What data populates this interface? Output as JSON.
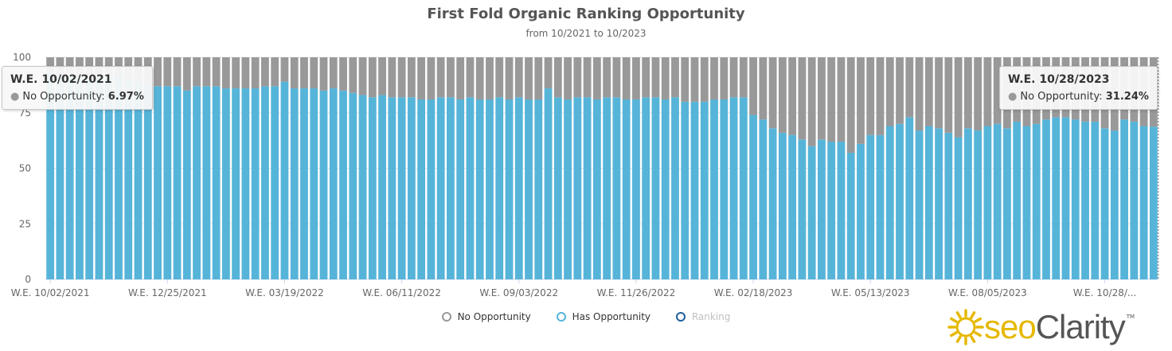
{
  "colors": {
    "no_opportunity": "#999999",
    "has_opportunity": "#56b4d9",
    "ranking": "#1f5f9f",
    "logo_accent": "#e6b800"
  },
  "legend": {
    "no_opportunity": "No Opportunity",
    "has_opportunity": "Has Opportunity",
    "ranking": "Ranking"
  },
  "tooltips": [
    {
      "header": "W.E. 10/02/2021",
      "label": "No Opportunity",
      "value": "6.97%"
    },
    {
      "header": "W.E. 10/28/2023",
      "label": "No Opportunity",
      "value": "31.24%"
    }
  ],
  "logo": {
    "text_seo": "seo",
    "text_clarity": "Clarity",
    "tm": "TM"
  },
  "chart_data": {
    "type": "bar",
    "stacked": true,
    "title": "First Fold Organic Ranking Opportunity",
    "subtitle": "from 10/2021 to 10/2023",
    "ylim": [
      0,
      100
    ],
    "yticks": [
      0,
      25,
      50,
      75,
      100
    ],
    "xtick_labels": [
      "W.E. 10/02/2021",
      "W.E. 12/25/2021",
      "W.E. 03/19/2022",
      "W.E. 06/11/2022",
      "W.E. 09/03/2022",
      "W.E. 11/26/2022",
      "W.E. 02/18/2023",
      "W.E. 05/13/2023",
      "W.E. 08/05/2023",
      "W.E. 10/28/..."
    ],
    "xtick_indices": [
      0,
      12,
      24,
      36,
      48,
      60,
      72,
      84,
      96,
      108
    ],
    "legend_position": "bottom",
    "series": [
      {
        "name": "Has Opportunity",
        "values": [
          93.03,
          92,
          92,
          91,
          91,
          91,
          91,
          92,
          90,
          89,
          88,
          87,
          87,
          87,
          85,
          87,
          87,
          87,
          86,
          86,
          86,
          86,
          87,
          87,
          89,
          86,
          86,
          86,
          85,
          86,
          85,
          84,
          83,
          82,
          83,
          82,
          82,
          82,
          81,
          81,
          82,
          82,
          81,
          82,
          81,
          81,
          82,
          81,
          82,
          81,
          81,
          86,
          82,
          81,
          82,
          82,
          81,
          82,
          82,
          81,
          81,
          82,
          82,
          81,
          82,
          80,
          80,
          80,
          81,
          81,
          82,
          82,
          74,
          72,
          68,
          66,
          65,
          63,
          60,
          63,
          62,
          62,
          57,
          61,
          65,
          65,
          69,
          70,
          73,
          67,
          69,
          68,
          66,
          64,
          68,
          67,
          69,
          70,
          68,
          71,
          69,
          70,
          72,
          73,
          73,
          72,
          71,
          71,
          68,
          67,
          72,
          71,
          69,
          68.76
        ]
      },
      {
        "name": "No Opportunity",
        "values": [
          6.97,
          8,
          8,
          9,
          9,
          9,
          9,
          8,
          10,
          11,
          12,
          13,
          13,
          13,
          15,
          13,
          13,
          13,
          14,
          14,
          14,
          14,
          13,
          13,
          11,
          14,
          14,
          14,
          15,
          14,
          15,
          16,
          17,
          18,
          17,
          18,
          18,
          18,
          19,
          19,
          18,
          18,
          19,
          18,
          19,
          19,
          18,
          19,
          18,
          19,
          19,
          14,
          18,
          19,
          18,
          18,
          19,
          18,
          18,
          19,
          19,
          18,
          18,
          19,
          18,
          20,
          20,
          20,
          19,
          19,
          18,
          18,
          26,
          28,
          32,
          34,
          35,
          37,
          40,
          37,
          38,
          38,
          43,
          39,
          35,
          35,
          31,
          30,
          27,
          33,
          31,
          32,
          34,
          36,
          32,
          33,
          31,
          30,
          32,
          29,
          31,
          30,
          28,
          27,
          27,
          28,
          29,
          29,
          32,
          33,
          28,
          29,
          31,
          31.24
        ]
      }
    ]
  }
}
